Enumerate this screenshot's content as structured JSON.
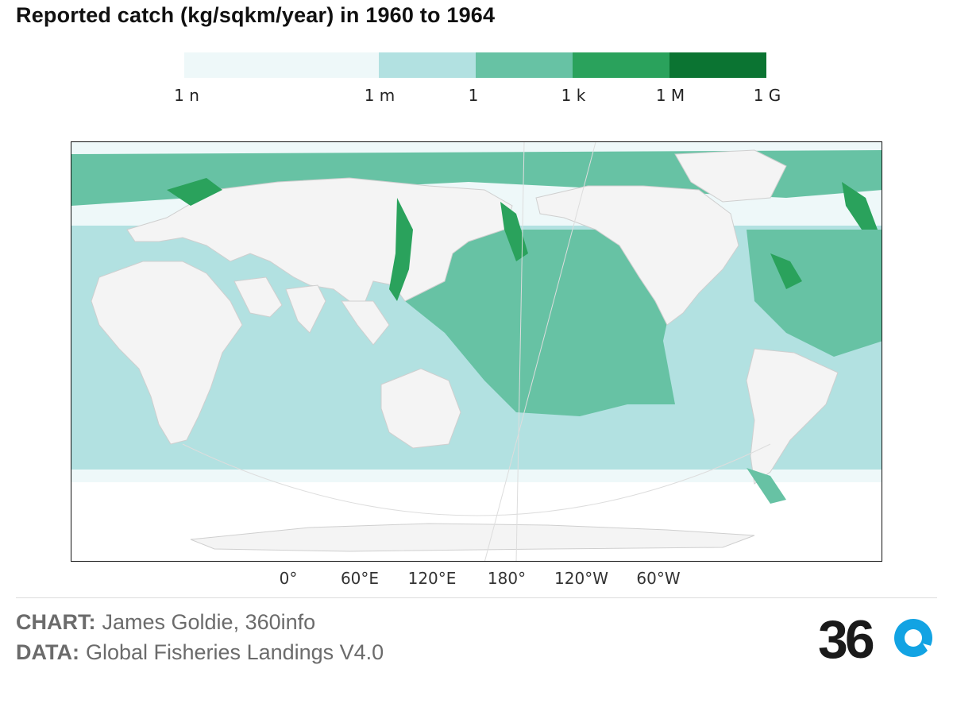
{
  "title": "Reported catch (kg/sqkm/year) in 1960 to 1964",
  "legend": {
    "segments": [
      {
        "color": "#eef8f9"
      },
      {
        "color": "#b2e1e1"
      },
      {
        "color": "#67c2a4"
      },
      {
        "color": "#2aa25c"
      },
      {
        "color": "#0b7432"
      }
    ],
    "labels": [
      "1 n",
      "1 m",
      "1",
      "1 k",
      "1 M",
      "1 G"
    ]
  },
  "map": {
    "colors": {
      "land": "#f4f4f4",
      "border": "#cfcfcf",
      "low": "#eef8f9",
      "mid": "#b2e1e1",
      "high": "#67c2a4",
      "higher": "#2aa25c",
      "highest": "#0b7432"
    },
    "x_ticks": [
      "0°",
      "60°E",
      "120°E",
      "180°",
      "120°W",
      "60°W"
    ]
  },
  "footer": {
    "chart_label": "CHART:",
    "chart_value": "James Goldie, 360info",
    "data_label": "DATA:",
    "data_value": "Global Fisheries Landings V4.0"
  },
  "logo": {
    "text": "360",
    "accent": "#12a3e3"
  }
}
